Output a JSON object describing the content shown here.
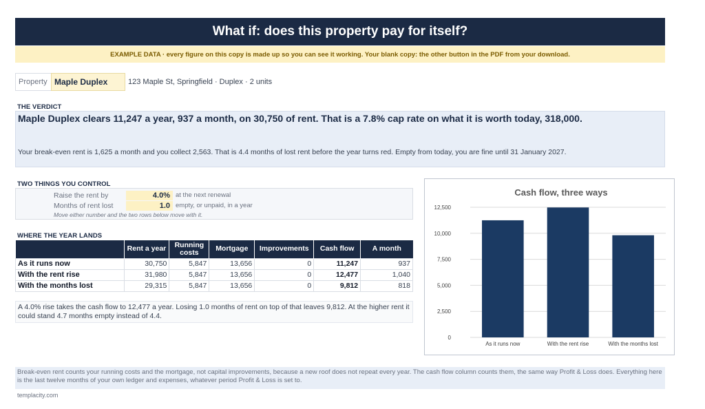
{
  "header": {
    "title": "What if: does this property pay for itself?",
    "banner": "EXAMPLE DATA  ·  every figure on this copy is made up so you can see it working. Your blank copy: the other button in the PDF from your download."
  },
  "property": {
    "label": "Property",
    "name": "Maple Duplex",
    "detail": "123 Maple St, Springfield  ·  Duplex  ·  2 units"
  },
  "verdict": {
    "heading": "THE VERDICT",
    "main": "Maple Duplex clears 11,247 a year, 937 a month, on 30,750 of rent. That is a 7.8% cap rate on what it is worth today, 318,000.",
    "sub": "Your break-even rent is 1,625 a month and you collect 2,563. That is 4.4 months of lost rent before the year turns red. Empty from today, you are fine until 31 January 2027."
  },
  "controls": {
    "heading": "TWO THINGS YOU CONTROL",
    "rows": [
      {
        "label": "Raise the rent by",
        "value": "4.0%",
        "note": "at the next renewal"
      },
      {
        "label": "Months of rent lost",
        "value": "1.0",
        "note": "empty, or unpaid, in a year"
      }
    ],
    "hint": "Move either number and the two rows below move with it."
  },
  "year_table": {
    "heading": "WHERE THE YEAR LANDS",
    "columns": [
      "",
      "Rent a year",
      "Running costs",
      "Mortgage",
      "Improvements",
      "Cash flow",
      "A month"
    ],
    "rows": [
      {
        "label": "As it runs now",
        "cells": [
          "30,750",
          "5,847",
          "13,656",
          "0",
          "11,247",
          "937"
        ]
      },
      {
        "label": "With the rent rise",
        "cells": [
          "31,980",
          "5,847",
          "13,656",
          "0",
          "12,477",
          "1,040"
        ]
      },
      {
        "label": "With the months lost",
        "cells": [
          "29,315",
          "5,847",
          "13,656",
          "0",
          "9,812",
          "818"
        ]
      }
    ]
  },
  "narrative": "A 4.0% rise takes the cash flow to 12,477 a year. Losing 1.0 months of rent on top of that leaves 9,812. At the higher rent it could stand 4.7 months empty instead of 4.4.",
  "footer": {
    "note": "Break-even rent counts your running costs and the mortgage, not capital improvements, because a new roof does not repeat every year. The cash flow column counts them, the same way Profit & Loss does. Everything here is the last twelve months of your own ledger and expenses, whatever period Profit & Loss is set to.",
    "site": "templacity.com"
  },
  "chart_data": {
    "type": "bar",
    "title": "Cash flow, three ways",
    "categories": [
      "As it runs now",
      "With the rent rise",
      "With the months lost"
    ],
    "values": [
      11247,
      12477,
      9812
    ],
    "ylim": [
      0,
      12500
    ],
    "yticks": [
      0,
      2500,
      5000,
      7500,
      10000,
      12500
    ],
    "ytick_labels": [
      "0",
      "2,500",
      "5,000",
      "7,500",
      "10,000",
      "12,500"
    ],
    "grid": true,
    "bar_color": "#1b3a63",
    "xlabel": "",
    "ylabel": ""
  },
  "colors": {
    "navy": "#1b2a44",
    "banner_bg": "#fdf1c4",
    "input_bg": "#fdf1c4",
    "panel_bg": "#e8eef7"
  }
}
